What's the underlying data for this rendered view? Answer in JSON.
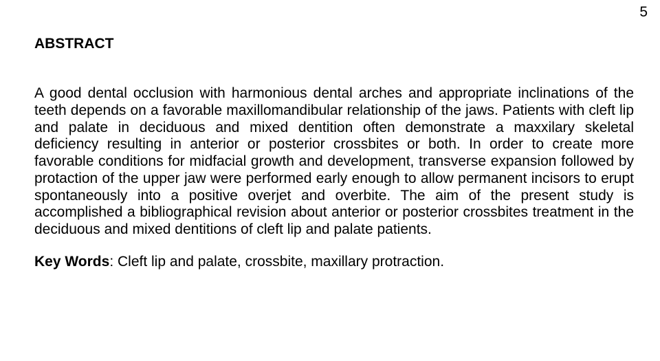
{
  "page": {
    "number": "5",
    "heading": "ABSTRACT",
    "paragraph": "A good dental occlusion with harmonious dental arches and appropriate inclinations of the teeth depends on a favorable maxillomandibular relationship of the jaws. Patients with cleft lip and palate in deciduous and mixed dentition often demonstrate a maxxilary skeletal deficiency resulting in anterior or posterior crossbites or both. In order to create more favorable conditions for midfacial growth and development, transverse expansion followed by protaction of the upper jaw were performed early enough to allow permanent incisors to erupt spontaneously into a positive overjet and overbite.  The aim of the present study is accomplished a bibliographical revision about anterior or posterior crossbites treatment in the deciduous and mixed dentitions of cleft lip and palate patients.",
    "keywords_label": "Key Words",
    "keywords_value": ": Cleft lip and palate, crossbite, maxillary protraction."
  },
  "styling": {
    "font_family": "Arial",
    "heading_fontsize": 21,
    "body_fontsize": 21,
    "text_color": "#000000",
    "background_color": "#ffffff",
    "text_align": "justify",
    "line_height": 1.18
  }
}
